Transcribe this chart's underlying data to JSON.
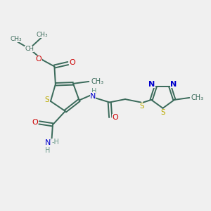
{
  "bg_color": "#f0f0f0",
  "bond_color": "#3a6a5a",
  "N_color": "#0000cc",
  "O_color": "#cc0000",
  "S_color": "#bbaa00",
  "H_color": "#6a9a8a",
  "figsize": [
    3.0,
    3.0
  ],
  "dpi": 100,
  "xlim": [
    0,
    10
  ],
  "ylim": [
    0,
    10
  ]
}
